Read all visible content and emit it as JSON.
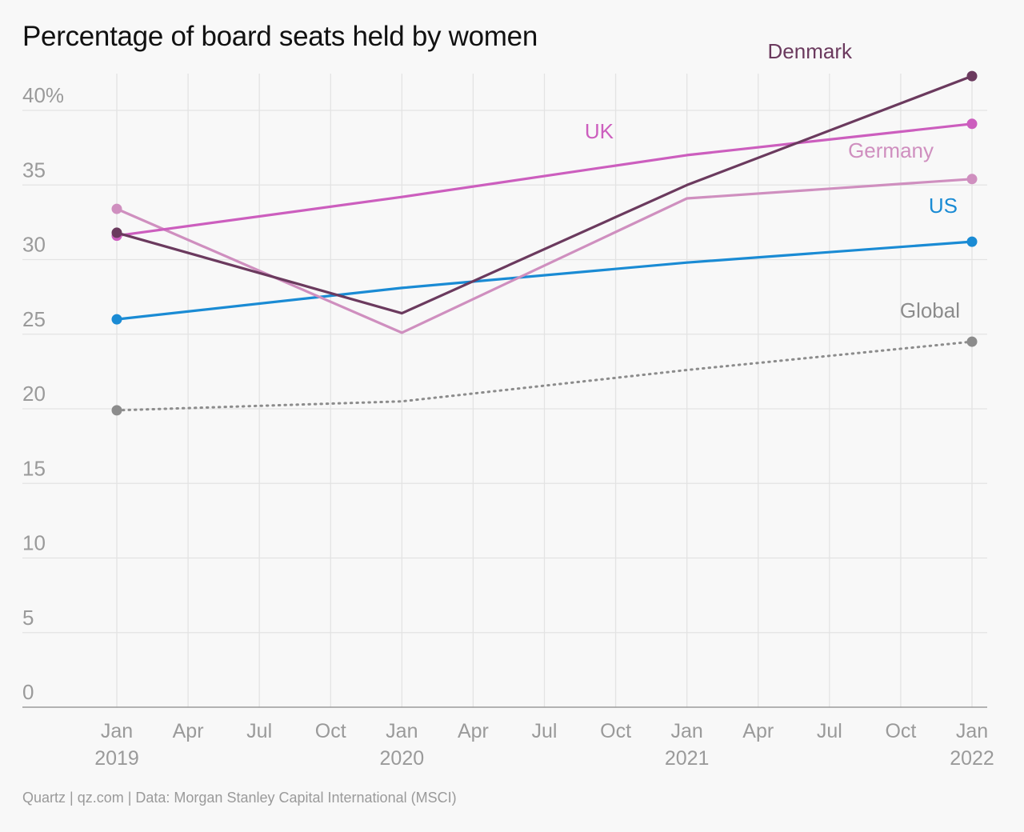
{
  "title": "Percentage of board seats held by women",
  "source": "Quartz | qz.com | Data: Morgan Stanley Capital International (MSCI)",
  "chart_data": {
    "type": "line",
    "title": "Percentage of board seats held by women",
    "xlabel": "",
    "ylabel": "",
    "ylim": [
      0,
      42
    ],
    "grid": true,
    "y_ticks": [
      {
        "value": 0,
        "label": "0"
      },
      {
        "value": 5,
        "label": "5"
      },
      {
        "value": 10,
        "label": "10"
      },
      {
        "value": 15,
        "label": "15"
      },
      {
        "value": 20,
        "label": "20"
      },
      {
        "value": 25,
        "label": "25"
      },
      {
        "value": 30,
        "label": "30"
      },
      {
        "value": 35,
        "label": "35"
      },
      {
        "value": 40,
        "label": "40%"
      }
    ],
    "x_ticks": [
      {
        "date": "2019-01",
        "label": "Jan",
        "year": "2019"
      },
      {
        "date": "2019-04",
        "label": "Apr",
        "year": ""
      },
      {
        "date": "2019-07",
        "label": "Jul",
        "year": ""
      },
      {
        "date": "2019-10",
        "label": "Oct",
        "year": ""
      },
      {
        "date": "2020-01",
        "label": "Jan",
        "year": "2020"
      },
      {
        "date": "2020-04",
        "label": "Apr",
        "year": ""
      },
      {
        "date": "2020-07",
        "label": "Jul",
        "year": ""
      },
      {
        "date": "2020-10",
        "label": "Oct",
        "year": ""
      },
      {
        "date": "2021-01",
        "label": "Jan",
        "year": "2021"
      },
      {
        "date": "2021-04",
        "label": "Apr",
        "year": ""
      },
      {
        "date": "2021-07",
        "label": "Jul",
        "year": ""
      },
      {
        "date": "2021-10",
        "label": "Oct",
        "year": ""
      },
      {
        "date": "2022-01",
        "label": "Jan",
        "year": "2022"
      }
    ],
    "x": [
      "2019-01",
      "2020-01",
      "2021-01",
      "2022-01"
    ],
    "series": [
      {
        "name": "Global",
        "color": "#8c8c8c",
        "dashed": true,
        "values": [
          19.9,
          20.5,
          22.6,
          24.5
        ]
      },
      {
        "name": "US",
        "color": "#1a8bd4",
        "dashed": false,
        "values": [
          26.0,
          28.1,
          29.8,
          31.2
        ]
      },
      {
        "name": "Germany",
        "color": "#cf8fbf",
        "dashed": false,
        "values": [
          33.4,
          25.1,
          34.1,
          35.4
        ]
      },
      {
        "name": "UK",
        "color": "#cc5ebe",
        "dashed": false,
        "values": [
          31.6,
          34.2,
          37.0,
          39.1
        ]
      },
      {
        "name": "Denmark",
        "color": "#6b3a5e",
        "dashed": false,
        "values": [
          31.8,
          26.4,
          35.0,
          42.3
        ]
      }
    ]
  }
}
